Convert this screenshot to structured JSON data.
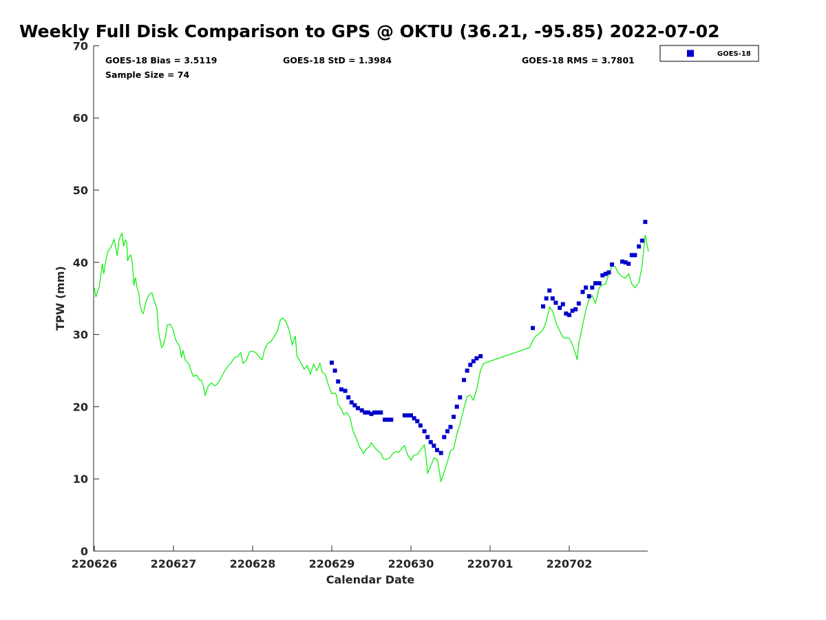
{
  "chart_data": {
    "type": "scatter",
    "title": "Weekly Full Disk Comparison to GPS @ OKTU (36.21, -95.85) 2022-07-02",
    "xlabel": "Calendar Date",
    "ylabel": "TPW (mm)",
    "x_ticks": [
      "220626",
      "220627",
      "220628",
      "220629",
      "220630",
      "220701",
      "220702"
    ],
    "x_range_days": [
      0,
      7.0
    ],
    "y_range": [
      0,
      70
    ],
    "y_ticks": [
      0,
      10,
      20,
      30,
      40,
      50,
      60,
      70
    ],
    "stats": {
      "bias": "GOES-18 Bias = 3.5119",
      "std": "GOES-18 StD = 1.3984",
      "rms": "GOES-18 RMS = 3.7801",
      "sample": "Sample Size = 74"
    },
    "legend": {
      "label": "GOES-18",
      "position": "top-right-outside"
    },
    "colors": {
      "goes": "#0000cc",
      "gps": "#00ee00",
      "axis": "#262626"
    },
    "series": [
      {
        "name": "GOES-18",
        "kind": "scatter",
        "points": [
          [
            3.0,
            26.1
          ],
          [
            3.04,
            25.0
          ],
          [
            3.08,
            23.5
          ],
          [
            3.12,
            22.4
          ],
          [
            3.17,
            22.2
          ],
          [
            3.21,
            21.3
          ],
          [
            3.25,
            20.6
          ],
          [
            3.29,
            20.2
          ],
          [
            3.33,
            19.8
          ],
          [
            3.38,
            19.5
          ],
          [
            3.42,
            19.2
          ],
          [
            3.46,
            19.2
          ],
          [
            3.5,
            19.0
          ],
          [
            3.54,
            19.2
          ],
          [
            3.58,
            19.2
          ],
          [
            3.62,
            19.2
          ],
          [
            3.67,
            18.2
          ],
          [
            3.71,
            18.2
          ],
          [
            3.75,
            18.2
          ],
          [
            3.92,
            18.8
          ],
          [
            3.96,
            18.8
          ],
          [
            4.0,
            18.8
          ],
          [
            4.04,
            18.4
          ],
          [
            4.08,
            18.0
          ],
          [
            4.12,
            17.4
          ],
          [
            4.17,
            16.6
          ],
          [
            4.21,
            15.8
          ],
          [
            4.25,
            15.1
          ],
          [
            4.29,
            14.6
          ],
          [
            4.33,
            14.0
          ],
          [
            4.38,
            13.6
          ],
          [
            4.42,
            15.8
          ],
          [
            4.46,
            16.6
          ],
          [
            4.5,
            17.2
          ],
          [
            4.54,
            18.6
          ],
          [
            4.58,
            20.0
          ],
          [
            4.62,
            21.3
          ],
          [
            4.67,
            23.7
          ],
          [
            4.71,
            25.0
          ],
          [
            4.75,
            25.8
          ],
          [
            4.79,
            26.3
          ],
          [
            4.83,
            26.7
          ],
          [
            4.88,
            27.0
          ],
          [
            5.54,
            30.9
          ],
          [
            5.67,
            33.9
          ],
          [
            5.71,
            35.0
          ],
          [
            5.75,
            36.1
          ],
          [
            5.79,
            35.0
          ],
          [
            5.83,
            34.4
          ],
          [
            5.88,
            33.7
          ],
          [
            5.92,
            34.2
          ],
          [
            5.96,
            32.9
          ],
          [
            6.0,
            32.7
          ],
          [
            6.04,
            33.3
          ],
          [
            6.08,
            33.5
          ],
          [
            6.12,
            34.3
          ],
          [
            6.17,
            35.9
          ],
          [
            6.21,
            36.5
          ],
          [
            6.25,
            35.3
          ],
          [
            6.29,
            36.5
          ],
          [
            6.33,
            37.1
          ],
          [
            6.38,
            37.1
          ],
          [
            6.42,
            38.2
          ],
          [
            6.46,
            38.4
          ],
          [
            6.5,
            38.6
          ],
          [
            6.54,
            39.7
          ],
          [
            6.67,
            40.1
          ],
          [
            6.71,
            40.0
          ],
          [
            6.75,
            39.8
          ],
          [
            6.79,
            41.0
          ],
          [
            6.83,
            41.0
          ],
          [
            6.88,
            42.2
          ],
          [
            6.92,
            43.0
          ],
          [
            6.96,
            45.6
          ]
        ]
      },
      {
        "name": "GPS",
        "kind": "line",
        "points": [
          [
            0.0,
            36.5
          ],
          [
            0.02,
            35.2
          ],
          [
            0.04,
            36.0
          ],
          [
            0.06,
            36.5
          ],
          [
            0.08,
            38.0
          ],
          [
            0.1,
            39.8
          ],
          [
            0.12,
            38.4
          ],
          [
            0.14,
            40.0
          ],
          [
            0.17,
            41.5
          ],
          [
            0.21,
            42.1
          ],
          [
            0.25,
            43.2
          ],
          [
            0.27,
            42.0
          ],
          [
            0.29,
            40.9
          ],
          [
            0.31,
            43.0
          ],
          [
            0.33,
            43.6
          ],
          [
            0.35,
            44.0
          ],
          [
            0.37,
            42.2
          ],
          [
            0.39,
            43.1
          ],
          [
            0.41,
            42.8
          ],
          [
            0.42,
            40.2
          ],
          [
            0.44,
            40.8
          ],
          [
            0.46,
            41.0
          ],
          [
            0.48,
            40.0
          ],
          [
            0.5,
            36.8
          ],
          [
            0.52,
            37.9
          ],
          [
            0.54,
            36.5
          ],
          [
            0.56,
            35.8
          ],
          [
            0.58,
            34.0
          ],
          [
            0.6,
            33.2
          ],
          [
            0.62,
            32.9
          ],
          [
            0.65,
            34.5
          ],
          [
            0.69,
            35.5
          ],
          [
            0.73,
            35.8
          ],
          [
            0.75,
            34.9
          ],
          [
            0.79,
            33.6
          ],
          [
            0.81,
            30.5
          ],
          [
            0.83,
            29.3
          ],
          [
            0.85,
            28.2
          ],
          [
            0.87,
            28.5
          ],
          [
            0.9,
            29.7
          ],
          [
            0.92,
            31.3
          ],
          [
            0.96,
            31.4
          ],
          [
            1.0,
            30.6
          ],
          [
            1.02,
            29.5
          ],
          [
            1.04,
            29.0
          ],
          [
            1.08,
            28.3
          ],
          [
            1.1,
            26.8
          ],
          [
            1.12,
            27.8
          ],
          [
            1.15,
            26.4
          ],
          [
            1.19,
            26.0
          ],
          [
            1.23,
            24.8
          ],
          [
            1.25,
            24.2
          ],
          [
            1.29,
            24.4
          ],
          [
            1.33,
            23.7
          ],
          [
            1.35,
            23.7
          ],
          [
            1.38,
            22.8
          ],
          [
            1.4,
            21.6
          ],
          [
            1.44,
            22.9
          ],
          [
            1.48,
            23.3
          ],
          [
            1.52,
            22.9
          ],
          [
            1.56,
            23.2
          ],
          [
            1.6,
            24.0
          ],
          [
            1.65,
            25.0
          ],
          [
            1.69,
            25.7
          ],
          [
            1.73,
            26.1
          ],
          [
            1.77,
            26.8
          ],
          [
            1.81,
            26.9
          ],
          [
            1.85,
            27.5
          ],
          [
            1.88,
            26.0
          ],
          [
            1.92,
            26.4
          ],
          [
            1.96,
            27.6
          ],
          [
            2.0,
            27.7
          ],
          [
            2.04,
            27.5
          ],
          [
            2.08,
            26.9
          ],
          [
            2.12,
            26.5
          ],
          [
            2.15,
            27.9
          ],
          [
            2.19,
            28.8
          ],
          [
            2.23,
            29.0
          ],
          [
            2.27,
            29.7
          ],
          [
            2.31,
            30.4
          ],
          [
            2.35,
            32.0
          ],
          [
            2.38,
            32.3
          ],
          [
            2.42,
            31.8
          ],
          [
            2.46,
            30.7
          ],
          [
            2.5,
            28.6
          ],
          [
            2.54,
            29.8
          ],
          [
            2.56,
            27.0
          ],
          [
            2.6,
            26.3
          ],
          [
            2.65,
            25.2
          ],
          [
            2.69,
            25.7
          ],
          [
            2.73,
            24.5
          ],
          [
            2.77,
            25.9
          ],
          [
            2.81,
            25.0
          ],
          [
            2.85,
            26.0
          ],
          [
            2.88,
            24.8
          ],
          [
            2.92,
            24.4
          ],
          [
            2.96,
            22.9
          ],
          [
            3.0,
            21.8
          ],
          [
            3.04,
            21.9
          ],
          [
            3.06,
            21.6
          ],
          [
            3.08,
            20.3
          ],
          [
            3.12,
            19.7
          ],
          [
            3.15,
            18.9
          ],
          [
            3.19,
            19.2
          ],
          [
            3.23,
            18.5
          ],
          [
            3.27,
            16.6
          ],
          [
            3.31,
            15.6
          ],
          [
            3.35,
            14.4
          ],
          [
            3.38,
            14.0
          ],
          [
            3.4,
            13.5
          ],
          [
            3.44,
            14.2
          ],
          [
            3.48,
            14.5
          ],
          [
            3.5,
            15.0
          ],
          [
            3.54,
            14.4
          ],
          [
            3.58,
            13.9
          ],
          [
            3.62,
            13.6
          ],
          [
            3.65,
            12.8
          ],
          [
            3.69,
            12.7
          ],
          [
            3.73,
            12.9
          ],
          [
            3.77,
            13.5
          ],
          [
            3.81,
            13.8
          ],
          [
            3.85,
            13.7
          ],
          [
            3.88,
            14.2
          ],
          [
            3.92,
            14.6
          ],
          [
            3.96,
            13.3
          ],
          [
            4.0,
            12.6
          ],
          [
            4.04,
            13.3
          ],
          [
            4.08,
            13.4
          ],
          [
            4.12,
            14.0
          ],
          [
            4.17,
            14.7
          ],
          [
            4.19,
            13.1
          ],
          [
            4.21,
            10.8
          ],
          [
            4.25,
            11.8
          ],
          [
            4.29,
            12.9
          ],
          [
            4.33,
            12.7
          ],
          [
            4.35,
            11.7
          ],
          [
            4.38,
            9.6
          ],
          [
            4.42,
            11.0
          ],
          [
            4.46,
            12.3
          ],
          [
            4.5,
            13.9
          ],
          [
            4.54,
            14.2
          ],
          [
            4.58,
            16.2
          ],
          [
            4.62,
            17.6
          ],
          [
            4.67,
            19.8
          ],
          [
            4.71,
            21.4
          ],
          [
            4.75,
            21.6
          ],
          [
            4.79,
            20.9
          ],
          [
            4.83,
            22.4
          ],
          [
            4.88,
            25.1
          ],
          [
            4.92,
            26.0
          ],
          [
            5.5,
            28.2
          ],
          [
            5.54,
            29.2
          ],
          [
            5.58,
            29.8
          ],
          [
            5.62,
            30.1
          ],
          [
            5.67,
            30.7
          ],
          [
            5.71,
            31.8
          ],
          [
            5.75,
            33.8
          ],
          [
            5.79,
            33.3
          ],
          [
            5.83,
            31.7
          ],
          [
            5.88,
            30.5
          ],
          [
            5.92,
            29.6
          ],
          [
            5.96,
            29.5
          ],
          [
            6.0,
            29.5
          ],
          [
            6.04,
            28.6
          ],
          [
            6.08,
            27.3
          ],
          [
            6.1,
            26.5
          ],
          [
            6.12,
            28.7
          ],
          [
            6.17,
            31.3
          ],
          [
            6.21,
            33.4
          ],
          [
            6.25,
            34.9
          ],
          [
            6.29,
            35.4
          ],
          [
            6.33,
            34.3
          ],
          [
            6.38,
            36.5
          ],
          [
            6.42,
            36.9
          ],
          [
            6.46,
            37.0
          ],
          [
            6.5,
            38.4
          ],
          [
            6.54,
            39.5
          ],
          [
            6.58,
            39.4
          ],
          [
            6.62,
            38.5
          ],
          [
            6.67,
            38.0
          ],
          [
            6.71,
            37.8
          ],
          [
            6.75,
            38.4
          ],
          [
            6.79,
            37.0
          ],
          [
            6.83,
            36.5
          ],
          [
            6.88,
            37.2
          ],
          [
            6.92,
            39.5
          ],
          [
            6.96,
            43.8
          ],
          [
            7.0,
            41.5
          ]
        ]
      }
    ]
  }
}
